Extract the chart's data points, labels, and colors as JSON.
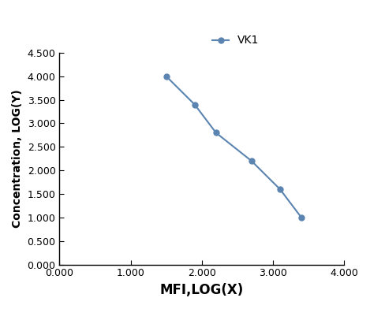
{
  "x": [
    1.5,
    1.9,
    2.2,
    2.7,
    3.1,
    3.4
  ],
  "y": [
    4.0,
    3.4,
    2.8,
    2.2,
    1.6,
    1.0
  ],
  "line_color": "#5b84b1",
  "marker": "o",
  "marker_size": 5,
  "line_width": 1.5,
  "xlabel": "MFI,LOG(X)",
  "ylabel": "Concentration, LOG(Y)",
  "legend_label": "VK1",
  "xlim": [
    0.0,
    4.0
  ],
  "ylim": [
    0.0,
    4.5
  ],
  "xticks": [
    0.0,
    1.0,
    2.0,
    3.0,
    4.0
  ],
  "yticks": [
    0.0,
    0.5,
    1.0,
    1.5,
    2.0,
    2.5,
    3.0,
    3.5,
    4.0,
    4.5
  ],
  "xtick_labels": [
    "0.000",
    "1.000",
    "2.000",
    "3.000",
    "4.000"
  ],
  "ytick_labels": [
    "0.000",
    "0.500",
    "1.000",
    "1.500",
    "2.000",
    "2.500",
    "3.000",
    "3.500",
    "4.000",
    "4.500"
  ],
  "xlabel_fontsize": 12,
  "ylabel_fontsize": 10,
  "tick_fontsize": 9,
  "legend_fontsize": 10,
  "background_color": "#ffffff"
}
